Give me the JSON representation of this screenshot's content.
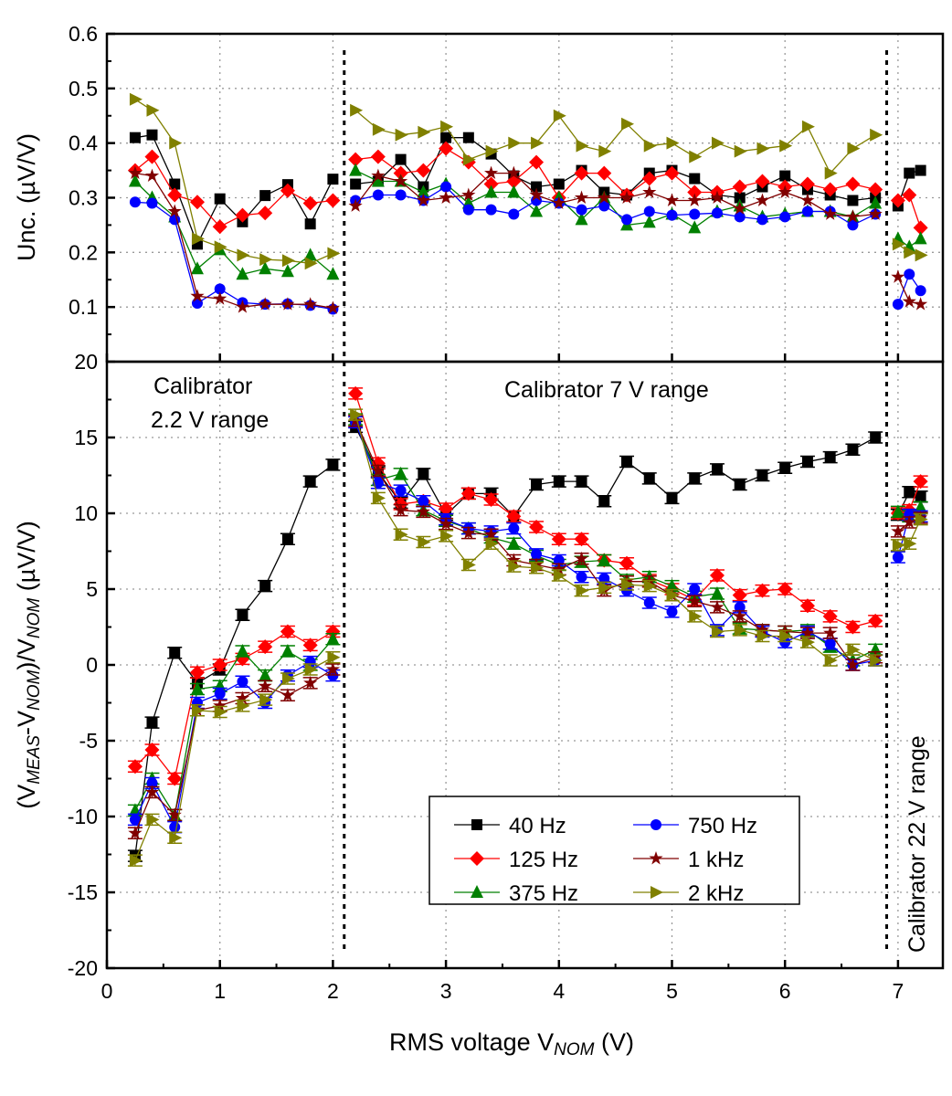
{
  "chart_data": [
    {
      "type": "line",
      "panel": "top",
      "ylabel": "Unc. (µV/V)",
      "ylim": [
        0,
        0.6
      ],
      "yticks": [
        0.1,
        0.2,
        0.3,
        0.4,
        0.5,
        0.6
      ],
      "xlim": [
        0,
        7.4
      ],
      "grid": true,
      "x": [
        0.25,
        0.4,
        0.6,
        0.8,
        1.0,
        1.2,
        1.4,
        1.6,
        1.8,
        2.0,
        2.2,
        2.4,
        2.6,
        2.8,
        3.0,
        3.2,
        3.4,
        3.6,
        3.8,
        4.0,
        4.2,
        4.4,
        4.6,
        4.8,
        5.0,
        5.2,
        5.4,
        5.6,
        5.8,
        6.0,
        6.2,
        6.4,
        6.6,
        6.8,
        7.0,
        7.1,
        7.2
      ],
      "series": [
        {
          "name": "40 Hz",
          "color": "#000000",
          "marker": "square",
          "values": [
            0.41,
            0.415,
            0.325,
            0.215,
            0.298,
            0.256,
            0.304,
            0.324,
            0.252,
            0.334,
            0.325,
            0.33,
            0.37,
            0.32,
            0.41,
            0.41,
            0.38,
            0.34,
            0.32,
            0.325,
            0.35,
            0.31,
            0.305,
            0.345,
            0.35,
            0.335,
            0.305,
            0.3,
            0.32,
            0.34,
            0.315,
            0.305,
            0.295,
            0.3,
            0.285,
            0.345,
            0.35
          ]
        },
        {
          "name": "125 Hz",
          "color": "#ff0000",
          "marker": "diamond",
          "values": [
            0.35,
            0.375,
            0.305,
            0.292,
            0.247,
            0.268,
            0.272,
            0.313,
            0.29,
            0.295,
            0.37,
            0.375,
            0.345,
            0.35,
            0.39,
            0.365,
            0.325,
            0.33,
            0.365,
            0.3,
            0.345,
            0.345,
            0.305,
            0.335,
            0.345,
            0.31,
            0.31,
            0.32,
            0.33,
            0.32,
            0.325,
            0.315,
            0.325,
            0.315,
            0.295,
            0.305,
            0.245
          ]
        },
        {
          "name": "375 Hz",
          "color": "#008000",
          "marker": "triangle-up",
          "values": [
            0.33,
            0.3,
            0.265,
            0.17,
            0.205,
            0.16,
            0.17,
            0.165,
            0.195,
            0.16,
            0.35,
            0.33,
            0.33,
            0.31,
            0.325,
            0.29,
            0.31,
            0.31,
            0.275,
            0.3,
            0.26,
            0.3,
            0.25,
            0.255,
            0.27,
            0.245,
            0.275,
            0.285,
            0.265,
            0.27,
            0.275,
            0.275,
            0.265,
            0.29,
            0.225,
            0.21,
            0.225
          ]
        },
        {
          "name": "750 Hz",
          "color": "#0000ff",
          "marker": "circle",
          "values": [
            0.292,
            0.29,
            0.26,
            0.107,
            0.133,
            0.108,
            0.105,
            0.106,
            0.103,
            0.096,
            0.295,
            0.305,
            0.305,
            0.295,
            0.32,
            0.278,
            0.278,
            0.27,
            0.295,
            0.29,
            0.278,
            0.285,
            0.26,
            0.275,
            0.268,
            0.27,
            0.272,
            0.265,
            0.26,
            0.265,
            0.275,
            0.275,
            0.25,
            0.27,
            0.105,
            0.16,
            0.13
          ]
        },
        {
          "name": "1 kHz",
          "color": "#800000",
          "marker": "star",
          "values": [
            0.345,
            0.34,
            0.275,
            0.12,
            0.115,
            0.1,
            0.105,
            0.105,
            0.105,
            0.098,
            0.285,
            0.34,
            0.33,
            0.295,
            0.3,
            0.305,
            0.345,
            0.345,
            0.305,
            0.29,
            0.3,
            0.3,
            0.3,
            0.31,
            0.295,
            0.295,
            0.3,
            0.28,
            0.295,
            0.31,
            0.295,
            0.27,
            0.265,
            0.27,
            0.155,
            0.11,
            0.105
          ]
        },
        {
          "name": "2 kHz",
          "color": "#808000",
          "marker": "triangle-right",
          "values": [
            0.48,
            0.46,
            0.4,
            0.225,
            0.21,
            0.195,
            0.187,
            0.185,
            0.18,
            0.198,
            0.46,
            0.425,
            0.415,
            0.42,
            0.43,
            0.37,
            0.385,
            0.4,
            0.4,
            0.45,
            0.395,
            0.385,
            0.435,
            0.395,
            0.4,
            0.375,
            0.4,
            0.385,
            0.39,
            0.395,
            0.43,
            0.345,
            0.39,
            0.415,
            0.215,
            0.2,
            0.195
          ]
        }
      ]
    },
    {
      "type": "line",
      "panel": "bottom",
      "ylabel_parts": [
        {
          "t": "(V",
          "sub": false
        },
        {
          "t": "MEAS",
          "sub": true
        },
        {
          "t": "-V",
          "sub": false
        },
        {
          "t": "NOM",
          "sub": true
        },
        {
          "t": ")/V",
          "sub": false
        },
        {
          "t": "NOM",
          "sub": true
        },
        {
          "t": " (µV/V)",
          "sub": false
        }
      ],
      "xlabel_parts": [
        {
          "t": "RMS voltage V",
          "sub": false
        },
        {
          "t": "NOM",
          "sub": true
        },
        {
          "t": " (V)",
          "sub": false
        }
      ],
      "ylim": [
        -20,
        20
      ],
      "yticks": [
        -20,
        -15,
        -10,
        -5,
        0,
        5,
        10,
        15,
        20
      ],
      "xlim": [
        0,
        7.4
      ],
      "xticks": [
        0,
        1,
        2,
        3,
        4,
        5,
        6,
        7
      ],
      "grid": true,
      "legend_position": "bottom-center",
      "range_dividers": [
        2.1,
        6.9
      ],
      "annotations": [
        "Calibrator",
        "2.2 V range",
        "Calibrator 7 V range",
        "Calibrator 22 V range"
      ],
      "x": [
        0.25,
        0.4,
        0.6,
        0.8,
        1.0,
        1.2,
        1.4,
        1.6,
        1.8,
        2.0,
        2.2,
        2.4,
        2.6,
        2.8,
        3.0,
        3.2,
        3.4,
        3.6,
        3.8,
        4.0,
        4.2,
        4.4,
        4.6,
        4.8,
        5.0,
        5.2,
        5.4,
        5.6,
        5.8,
        6.0,
        6.2,
        6.4,
        6.6,
        6.8,
        7.0,
        7.1,
        7.2
      ],
      "series": [
        {
          "name": "40 Hz",
          "color": "#000000",
          "marker": "square",
          "values": [
            -12.6,
            -3.8,
            0.8,
            -1.2,
            -0.3,
            3.3,
            5.2,
            8.3,
            12.1,
            13.2,
            15.7,
            12.7,
            10.7,
            12.6,
            9.9,
            11.3,
            11.3,
            9.8,
            11.9,
            12.1,
            12.1,
            10.8,
            13.4,
            12.3,
            11.0,
            12.3,
            12.9,
            11.9,
            12.5,
            13.0,
            13.4,
            13.7,
            14.2,
            15.0,
            9.9,
            11.4,
            11.1
          ]
        },
        {
          "name": "125 Hz",
          "color": "#ff0000",
          "marker": "diamond",
          "values": [
            -6.7,
            -5.6,
            -7.5,
            -0.5,
            0.0,
            0.4,
            1.2,
            2.2,
            1.3,
            2.2,
            17.9,
            13.3,
            10.6,
            10.8,
            10.3,
            11.3,
            10.9,
            9.8,
            9.1,
            8.3,
            8.3,
            6.9,
            6.7,
            5.6,
            5.0,
            4.3,
            5.9,
            4.6,
            4.9,
            5.0,
            3.9,
            3.2,
            2.5,
            2.9,
            10.0,
            10.2,
            12.1
          ]
        },
        {
          "name": "375 Hz",
          "color": "#008000",
          "marker": "triangle-up",
          "values": [
            -9.6,
            -7.5,
            -9.9,
            -1.6,
            -1.4,
            0.9,
            -0.7,
            0.9,
            0.0,
            1.7,
            16.2,
            12.2,
            12.6,
            10.2,
            9.5,
            9.0,
            8.4,
            8.0,
            7.2,
            6.6,
            6.8,
            6.9,
            5.6,
            5.8,
            5.2,
            4.5,
            4.7,
            2.4,
            2.3,
            2.2,
            2.3,
            1.2,
            0.3,
            1.0,
            10.1,
            9.8,
            10.4
          ]
        },
        {
          "name": "750 Hz",
          "color": "#0000ff",
          "marker": "circle",
          "values": [
            -10.2,
            -7.8,
            -10.7,
            -2.5,
            -1.9,
            -1.1,
            -2.5,
            -0.7,
            0.2,
            -0.7,
            16.0,
            12.0,
            11.5,
            10.8,
            9.6,
            9.0,
            8.8,
            9.0,
            7.3,
            6.9,
            5.8,
            5.7,
            4.9,
            4.1,
            3.5,
            5.0,
            2.3,
            3.8,
            2.2,
            1.5,
            2.2,
            1.4,
            0.0,
            0.3,
            7.1,
            9.9,
            9.8
          ]
        },
        {
          "name": "1 kHz",
          "color": "#800000",
          "marker": "star",
          "values": [
            -11.1,
            -8.4,
            -9.9,
            -3.0,
            -2.7,
            -2.2,
            -1.4,
            -2.0,
            -1.2,
            -0.3,
            16.1,
            12.8,
            10.2,
            10.1,
            9.3,
            8.7,
            8.6,
            6.9,
            6.6,
            6.3,
            7.0,
            4.9,
            5.5,
            5.5,
            4.6,
            4.2,
            3.8,
            3.2,
            2.3,
            2.2,
            2.1,
            2.1,
            0.0,
            0.5,
            8.8,
            9.4,
            9.7
          ]
        },
        {
          "name": "2 kHz",
          "color": "#808000",
          "marker": "triangle-right",
          "values": [
            -12.9,
            -10.2,
            -11.4,
            -3.0,
            -3.1,
            -2.7,
            -2.3,
            -0.9,
            -0.3,
            0.5,
            16.5,
            11.0,
            8.6,
            8.1,
            8.5,
            6.6,
            8.0,
            6.5,
            6.4,
            5.9,
            4.9,
            5.1,
            5.3,
            5.2,
            4.6,
            3.2,
            2.2,
            2.3,
            1.9,
            1.9,
            1.5,
            0.3,
            1.0,
            0.3,
            7.9,
            8.0,
            9.6
          ]
        }
      ]
    }
  ]
}
